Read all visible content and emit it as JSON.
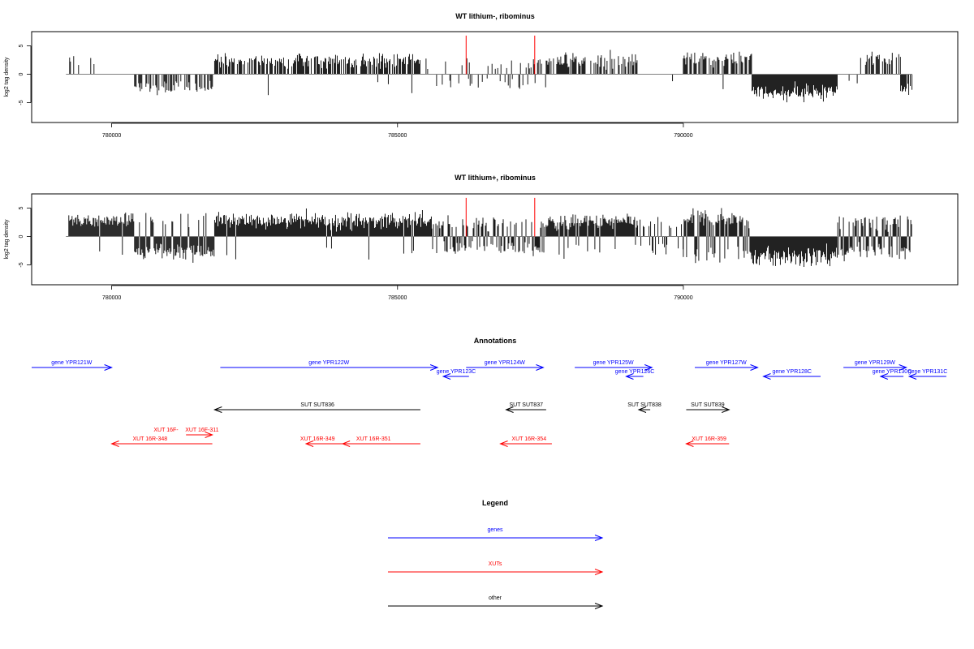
{
  "chart_data": [
    {
      "type": "bar",
      "title": "WT lithium-, ribominus",
      "ylabel": "log2 tag density",
      "xlabel": "",
      "xlim": [
        778600,
        794800
      ],
      "ylim": [
        -8.5,
        7.5
      ],
      "x_ticks": [
        780000,
        785000,
        790000
      ],
      "x_tick_labels": [
        "780000",
        "785000",
        "790000"
      ],
      "y_ticks": [
        -5,
        0,
        5
      ],
      "y_tick_labels": [
        "-5",
        "0",
        "5"
      ],
      "baseline_range": [
        779200,
        794000
      ],
      "bar_color": "#000000",
      "baseline_color": "#808080",
      "markers": [
        {
          "x": 786200,
          "color": "#ff0000",
          "height": 6.8
        },
        {
          "x": 787400,
          "color": "#ff0000",
          "height": 6.8
        }
      ],
      "segments": [
        {
          "start": 779250,
          "end": 779700,
          "density": 0.25,
          "mean": 2.5,
          "sd": 0.7,
          "neg": 0
        },
        {
          "start": 780000,
          "end": 780600,
          "density": 0.05,
          "mean": 2,
          "sd": 0.5,
          "neg": 0
        },
        {
          "start": 780400,
          "end": 781800,
          "density": 0.45,
          "mean": -2.3,
          "sd": 0.8,
          "neg": 1
        },
        {
          "start": 781800,
          "end": 785400,
          "density": 0.7,
          "mean": 2.4,
          "sd": 0.9,
          "neg": 0.05
        },
        {
          "start": 785400,
          "end": 785900,
          "density": 0.1,
          "mean": 2.2,
          "sd": 0.8,
          "neg": 0.3
        },
        {
          "start": 785900,
          "end": 787600,
          "density": 0.35,
          "mean": 1.8,
          "sd": 0.8,
          "neg": 0.5
        },
        {
          "start": 787600,
          "end": 789200,
          "density": 0.6,
          "mean": 2.4,
          "sd": 1,
          "neg": 0
        },
        {
          "start": 789300,
          "end": 790000,
          "density": 0.05,
          "mean": -1.5,
          "sd": 0.3,
          "neg": 1
        },
        {
          "start": 790000,
          "end": 791200,
          "density": 0.7,
          "mean": 2.6,
          "sd": 1,
          "neg": 0.05
        },
        {
          "start": 791200,
          "end": 792700,
          "density": 1.2,
          "mean": -3.2,
          "sd": 1,
          "neg": 1
        },
        {
          "start": 792700,
          "end": 793100,
          "density": 0.1,
          "mean": -1.5,
          "sd": 0.4,
          "neg": 1
        },
        {
          "start": 793100,
          "end": 793800,
          "density": 0.6,
          "mean": 2.8,
          "sd": 0.8,
          "neg": 0.1
        },
        {
          "start": 793800,
          "end": 794000,
          "density": 0.9,
          "mean": -2.5,
          "sd": 0.8,
          "neg": 1
        }
      ]
    },
    {
      "type": "bar",
      "title": "WT lithium+, ribominus",
      "ylabel": "log2 tag density",
      "xlabel": "",
      "xlim": [
        778600,
        794800
      ],
      "ylim": [
        -8.5,
        7.5
      ],
      "x_ticks": [
        780000,
        785000,
        790000
      ],
      "x_tick_labels": [
        "780000",
        "785000",
        "790000"
      ],
      "y_ticks": [
        -5,
        0,
        5
      ],
      "y_tick_labels": [
        "-5",
        "0",
        "5"
      ],
      "baseline_range": [
        779200,
        794000
      ],
      "bar_color": "#000000",
      "baseline_color": "#808080",
      "markers": [
        {
          "x": 786200,
          "color": "#ff0000",
          "height": 6.8
        },
        {
          "x": 787400,
          "color": "#ff0000",
          "height": 6.8
        }
      ],
      "segments": [
        {
          "start": 779250,
          "end": 780400,
          "density": 1.6,
          "mean": 2.7,
          "sd": 1,
          "neg": 0.05
        },
        {
          "start": 780400,
          "end": 781800,
          "density": 1.6,
          "mean": -2.8,
          "sd": 1,
          "neg": 0.85
        },
        {
          "start": 781800,
          "end": 785600,
          "density": 2.2,
          "mean": 2.8,
          "sd": 1.1,
          "neg": 0.03
        },
        {
          "start": 785600,
          "end": 787600,
          "density": 0.8,
          "mean": -2.2,
          "sd": 0.9,
          "neg": 0.6
        },
        {
          "start": 787600,
          "end": 789200,
          "density": 1,
          "mean": 2.5,
          "sd": 1,
          "neg": 0.1
        },
        {
          "start": 789200,
          "end": 790000,
          "density": 0.5,
          "mean": -2,
          "sd": 0.8,
          "neg": 0.6
        },
        {
          "start": 790000,
          "end": 791200,
          "density": 1.8,
          "mean": 3.3,
          "sd": 1.2,
          "neg": 0.3
        },
        {
          "start": 791200,
          "end": 792700,
          "density": 2.5,
          "mean": -3.5,
          "sd": 1.2,
          "neg": 1
        },
        {
          "start": 792700,
          "end": 794000,
          "density": 1.2,
          "mean": -2.6,
          "sd": 1,
          "neg": 0.6
        }
      ]
    }
  ],
  "annotations": {
    "title": "Annotations",
    "xlim": [
      778600,
      794800
    ],
    "genes": [
      {
        "label": "gene YPR121W",
        "start": 778600,
        "end": 780000,
        "strand": "+",
        "row": 0
      },
      {
        "label": "gene YPR122W",
        "start": 781900,
        "end": 785700,
        "strand": "+",
        "row": 0
      },
      {
        "label": "gene YPR123C",
        "start": 785800,
        "end": 786250,
        "strand": "-",
        "row": 1
      },
      {
        "label": "gene YPR124W",
        "start": 786200,
        "end": 787550,
        "strand": "+",
        "row": 0
      },
      {
        "label": "gene YPR125W",
        "start": 788100,
        "end": 789450,
        "strand": "+",
        "row": 0
      },
      {
        "label": "gene YPR126C",
        "start": 789000,
        "end": 789300,
        "strand": "-",
        "row": 1
      },
      {
        "label": "gene YPR127W",
        "start": 790200,
        "end": 791300,
        "strand": "+",
        "row": 0
      },
      {
        "label": "gene YPR128C",
        "start": 791400,
        "end": 792400,
        "strand": "-",
        "row": 1
      },
      {
        "label": "gene YPR129W",
        "start": 792800,
        "end": 793900,
        "strand": "+",
        "row": 0
      },
      {
        "label": "gene YPR130C",
        "start": 793450,
        "end": 793850,
        "strand": "-",
        "row": 1
      },
      {
        "label": "gene YPR131C",
        "start": 793950,
        "end": 794600,
        "strand": "-",
        "row": 1
      }
    ],
    "suts": [
      {
        "label": "SUT SUT836",
        "start": 781800,
        "end": 785400,
        "strand": "-"
      },
      {
        "label": "SUT SUT837",
        "start": 786900,
        "end": 787600,
        "strand": "-"
      },
      {
        "label": "SUT SUT838",
        "start": 789220,
        "end": 789420,
        "strand": "-"
      },
      {
        "label": "SUT SUT839",
        "start": 790050,
        "end": 790800,
        "strand": "+"
      }
    ],
    "xuts": [
      {
        "label": "XUT 16F-311",
        "start": 781300,
        "end": 781760,
        "strand": "+",
        "row": 0,
        "text_x": 781580
      },
      {
        "label": "XUT 16R-348",
        "start": 780000,
        "end": 781760,
        "strand": "-",
        "row": 1,
        "text_x": 780670
      },
      {
        "label": "XUT 16R-349",
        "start": 783400,
        "end": 784040,
        "strand": "-",
        "row": 1,
        "text_x": 783600
      },
      {
        "label": "XUT 16R-351",
        "start": 784040,
        "end": 785400,
        "strand": "-",
        "row": 1,
        "text_x": 784580
      },
      {
        "label": "XUT 16R-354",
        "start": 786800,
        "end": 787700,
        "strand": "-",
        "row": 1,
        "text_x": 787300
      },
      {
        "label": "XUT 16R-359",
        "start": 790050,
        "end": 790800,
        "strand": "-",
        "row": 1,
        "text_x": 790450
      }
    ],
    "overlap_label": {
      "label": "XUT 16F-",
      "x": 780950,
      "row": 0
    }
  },
  "legend": {
    "title": "Legend",
    "items": [
      {
        "label": "genes",
        "color": "#0000ff"
      },
      {
        "label": "XUTs",
        "color": "#ff0000"
      },
      {
        "label": "other",
        "color": "#000000"
      }
    ]
  },
  "colors": {
    "gene": "#0000ff",
    "xut": "#ff0000",
    "sut": "#000000",
    "axis": "#000000"
  }
}
